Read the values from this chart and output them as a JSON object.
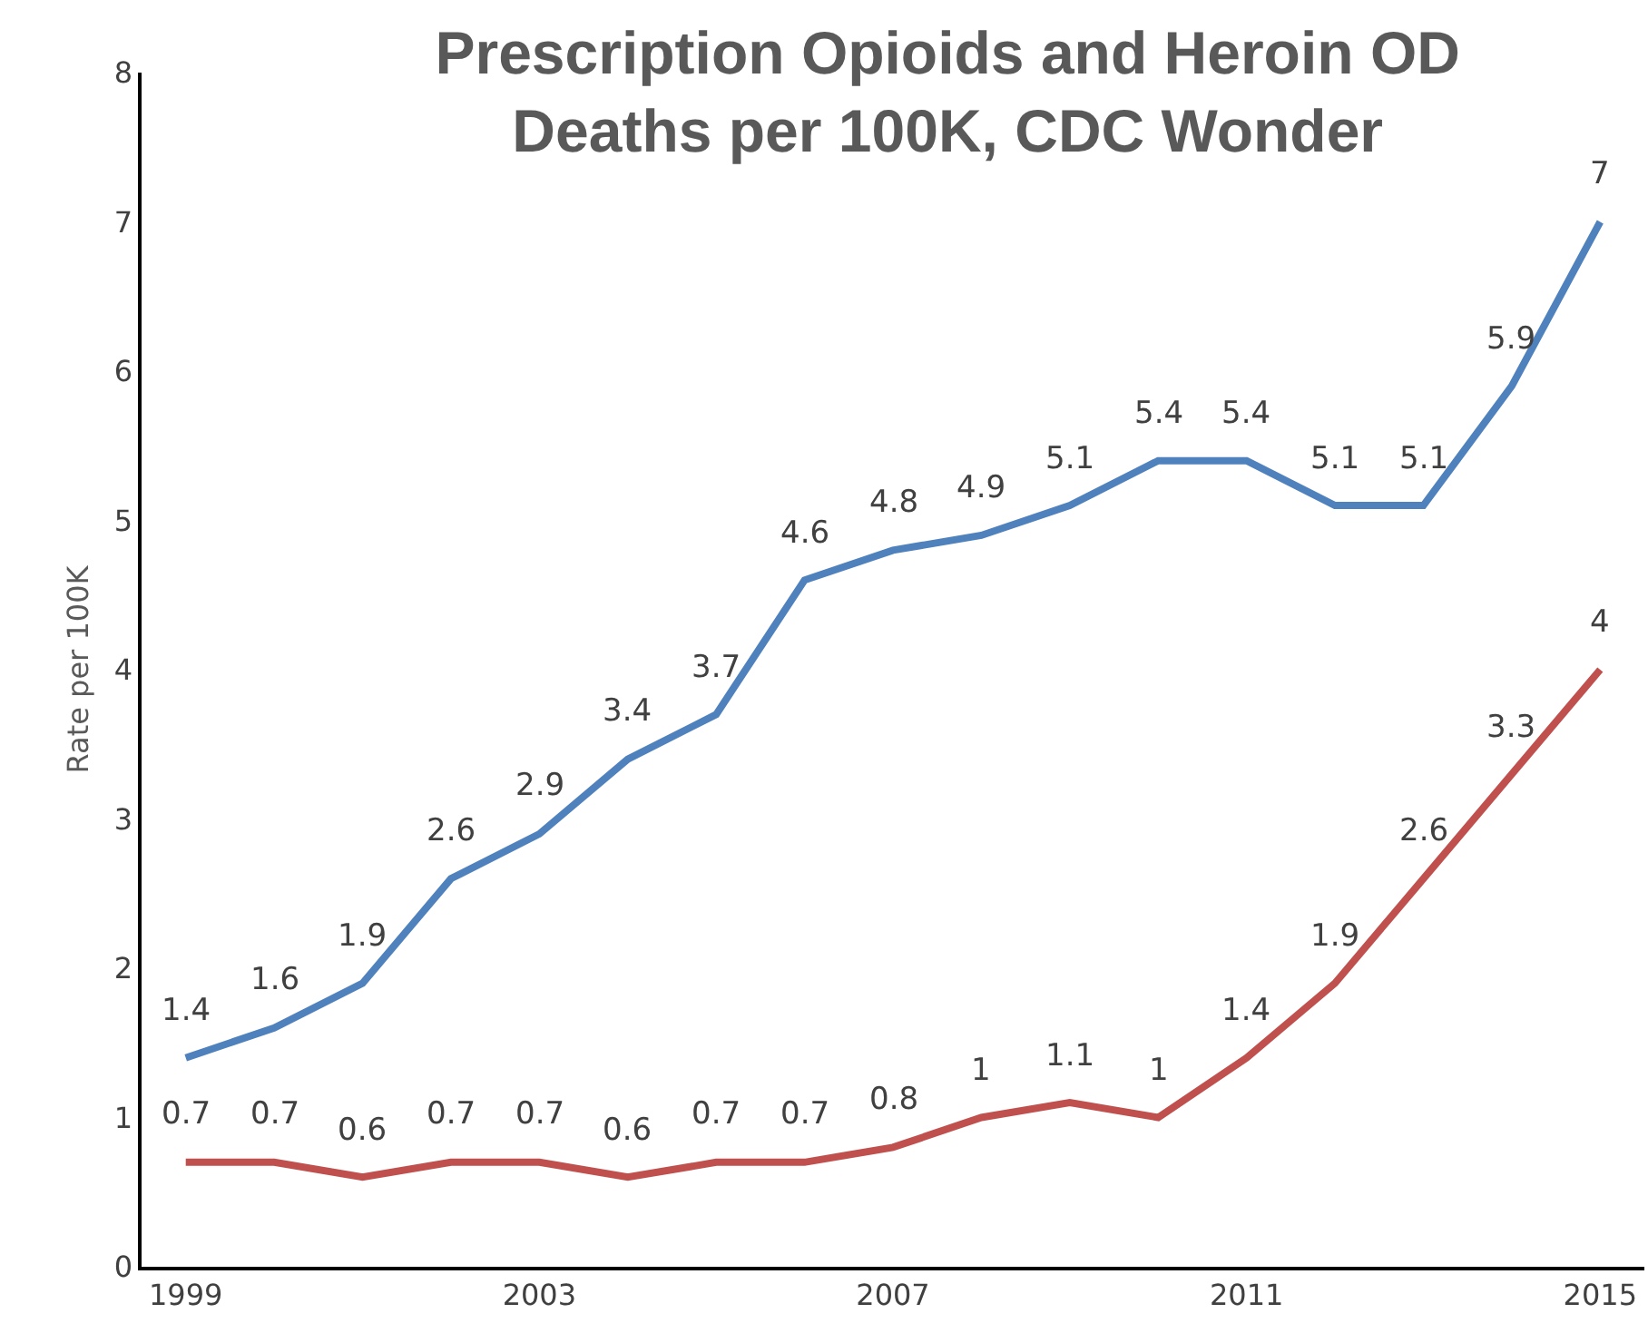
{
  "chart_data": {
    "type": "line",
    "title": "Prescription Opioids and Heroin OD\nDeaths per 100K, CDC Wonder",
    "ylabel": "Rate per 100K",
    "x": [
      1999,
      2000,
      2001,
      2002,
      2003,
      2004,
      2005,
      2006,
      2007,
      2008,
      2009,
      2010,
      2011,
      2012,
      2013,
      2014,
      2015
    ],
    "series": [
      {
        "color": "#4f81bd",
        "values": [
          1.4,
          1.6,
          1.9,
          2.6,
          2.9,
          3.4,
          3.7,
          4.6,
          4.8,
          4.9,
          5.1,
          5.4,
          5.4,
          5.1,
          5.1,
          5.9,
          7
        ]
      },
      {
        "color": "#c0504d",
        "values": [
          0.7,
          0.7,
          0.6,
          0.7,
          0.7,
          0.6,
          0.7,
          0.7,
          0.8,
          1,
          1.1,
          1,
          1.4,
          1.9,
          2.6,
          3.3,
          4
        ]
      }
    ],
    "xlim": [
      1998.5,
      2015.5
    ],
    "xticks": [
      1999,
      2003,
      2007,
      2011,
      2015
    ],
    "ylim": [
      0,
      8
    ],
    "yticks": [
      0,
      1,
      2,
      3,
      4,
      5,
      6,
      7,
      8
    ],
    "data_labels": true,
    "line_style": "solid"
  }
}
